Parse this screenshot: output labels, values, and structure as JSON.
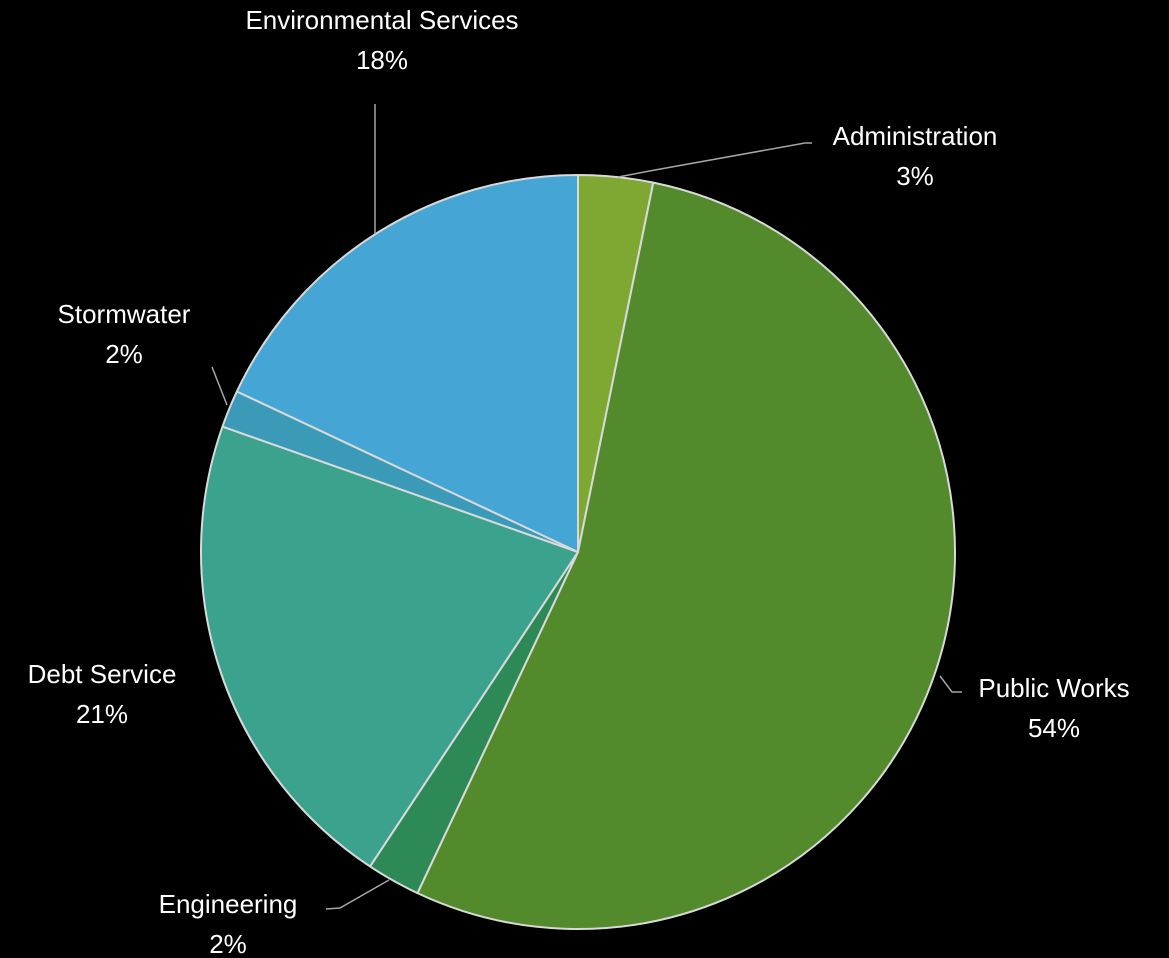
{
  "chart_data": {
    "type": "pie",
    "title": "",
    "start": "12 o'clock",
    "direction": "clockwise",
    "slices": [
      {
        "name": "Administration",
        "label": "3%",
        "value": 3.2,
        "color": "#7ea832"
      },
      {
        "name": "Public Works",
        "label": "54%",
        "value": 53.8,
        "color": "#538a2c"
      },
      {
        "name": "Engineering",
        "label": "2%",
        "value": 2.3,
        "color": "#2d8a57"
      },
      {
        "name": "Debt Service",
        "label": "21%",
        "value": 21.1,
        "color": "#3ba28e"
      },
      {
        "name": "Stormwater",
        "label": "2%",
        "value": 1.6,
        "color": "#3a9ab8"
      },
      {
        "name": "Environmental Services",
        "label": "18%",
        "value": 18.0,
        "color": "#45a5d4"
      }
    ],
    "slice_border_color": "#d9d9d9",
    "label_color": "#ffffff",
    "leader_line_color": "#a6a6a6",
    "background_color": "#000000"
  }
}
